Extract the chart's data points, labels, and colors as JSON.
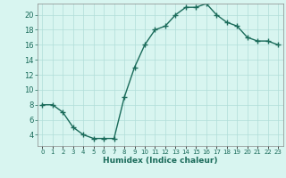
{
  "x": [
    0,
    1,
    2,
    3,
    4,
    5,
    6,
    7,
    8,
    9,
    10,
    11,
    12,
    13,
    14,
    15,
    16,
    17,
    18,
    19,
    20,
    21,
    22,
    23
  ],
  "y": [
    8,
    8,
    7,
    5,
    4,
    3.5,
    3.5,
    3.5,
    9,
    13,
    16,
    18,
    18.5,
    20,
    21,
    21,
    21.5,
    20,
    19,
    18.5,
    17,
    16.5,
    16.5,
    16
  ],
  "line_color": "#1a6b5a",
  "marker": "+",
  "marker_color": "#1a6b5a",
  "bg_color": "#d8f5f0",
  "grid_color": "#b0ddd8",
  "xlabel": "Humidex (Indice chaleur)",
  "xlim": [
    -0.5,
    23.5
  ],
  "ylim": [
    2.5,
    21.5
  ],
  "yticks": [
    4,
    6,
    8,
    10,
    12,
    14,
    16,
    18,
    20
  ],
  "xticks": [
    0,
    1,
    2,
    3,
    4,
    5,
    6,
    7,
    8,
    9,
    10,
    11,
    12,
    13,
    14,
    15,
    16,
    17,
    18,
    19,
    20,
    21,
    22,
    23
  ],
  "xtick_labels": [
    "0",
    "1",
    "2",
    "3",
    "4",
    "5",
    "6",
    "7",
    "8",
    "9",
    "10",
    "11",
    "12",
    "13",
    "14",
    "15",
    "16",
    "17",
    "18",
    "19",
    "20",
    "21",
    "22",
    "23"
  ],
  "linewidth": 1.0,
  "markersize": 4,
  "xlabel_fontsize": 6.5,
  "tick_fontsize_x": 5.0,
  "tick_fontsize_y": 6.0
}
